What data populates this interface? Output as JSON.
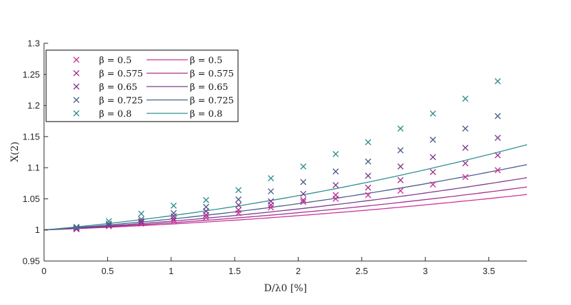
{
  "chart_data": {
    "type": "scatter",
    "xlabel": "D/λ0 [%]",
    "ylabel": "X(2)",
    "xlim": [
      0,
      3.8
    ],
    "ylim": [
      0.95,
      1.3
    ],
    "xticks": [
      "0",
      "0.5",
      "1",
      "1.5",
      "2",
      "2.5",
      "3",
      "3.5"
    ],
    "yticks": [
      "0.95",
      "1",
      "1.05",
      "1.1",
      "1.15",
      "1.2",
      "1.25",
      "1.3"
    ],
    "x": [
      0.255,
      0.51,
      0.765,
      1.02,
      1.275,
      1.53,
      1.785,
      2.04,
      2.295,
      2.55,
      2.805,
      3.06,
      3.315,
      3.57
    ],
    "series": [
      {
        "name": "β = 0.5",
        "color": "#cc3399",
        "markers": [
          1.001,
          1.006,
          1.01,
          1.015,
          1.02,
          1.027,
          1.036,
          1.045,
          1.05,
          1.056,
          1.063,
          1.073,
          1.085,
          1.096
        ],
        "curve_end": 1.057
      },
      {
        "name": "β = 0.575",
        "color": "#a8308f",
        "markers": [
          1.002,
          1.007,
          1.012,
          1.018,
          1.024,
          1.032,
          1.04,
          1.048,
          1.056,
          1.068,
          1.08,
          1.093,
          1.107,
          1.12
        ],
        "curve_end": 1.069
      },
      {
        "name": "β = 0.65",
        "color": "#7e3c8f",
        "markers": [
          1.003,
          1.008,
          1.014,
          1.022,
          1.03,
          1.04,
          1.046,
          1.058,
          1.072,
          1.087,
          1.102,
          1.117,
          1.132,
          1.148
        ],
        "curve_end": 1.084
      },
      {
        "name": "β = 0.725",
        "color": "#4a5f8e",
        "markers": [
          1.004,
          1.01,
          1.017,
          1.027,
          1.037,
          1.049,
          1.062,
          1.077,
          1.094,
          1.11,
          1.128,
          1.145,
          1.163,
          1.183
        ],
        "curve_end": 1.105
      },
      {
        "name": "β = 0.8",
        "color": "#2f8f8f",
        "markers": [
          1.005,
          1.014,
          1.026,
          1.039,
          1.048,
          1.064,
          1.083,
          1.102,
          1.122,
          1.141,
          1.163,
          1.187,
          1.211,
          1.239
        ],
        "curve_end": 1.137
      }
    ]
  }
}
